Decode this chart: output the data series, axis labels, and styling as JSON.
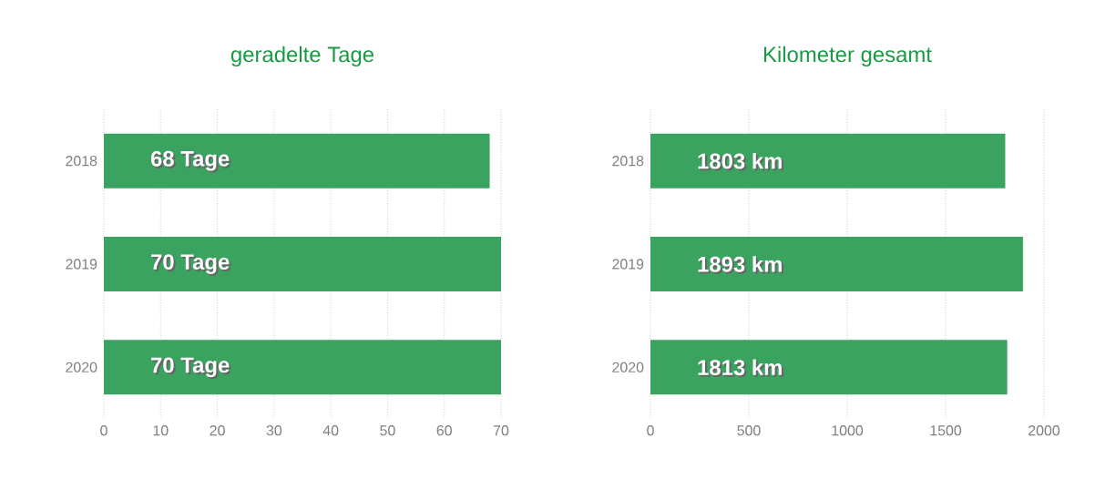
{
  "chart_data": [
    {
      "type": "bar",
      "orientation": "horizontal",
      "title": "geradelte Tage",
      "categories": [
        "2018",
        "2019",
        "2020"
      ],
      "values": [
        68,
        70,
        70
      ],
      "value_labels": [
        "68 Tage",
        "70 Tage",
        "70 Tage"
      ],
      "color": "#3aa35f",
      "xlim": [
        0,
        70
      ],
      "xticks": [
        0,
        10,
        20,
        30,
        40,
        50,
        60,
        70
      ],
      "grid": "x"
    },
    {
      "type": "bar",
      "orientation": "horizontal",
      "title": "Kilometer gesamt",
      "categories": [
        "2018",
        "2019",
        "2020"
      ],
      "values": [
        1803,
        1893,
        1813
      ],
      "value_labels": [
        "1803 km",
        "1893 km",
        "1813 km"
      ],
      "color": "#3aa35f",
      "xlim": [
        0,
        2000
      ],
      "xticks": [
        0,
        500,
        1000,
        1500,
        2000
      ],
      "grid": "x"
    }
  ]
}
